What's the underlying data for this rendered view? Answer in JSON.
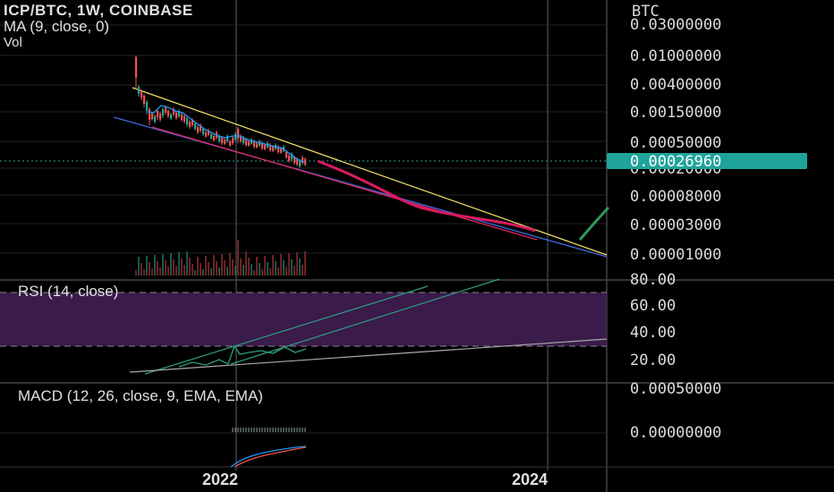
{
  "header": {
    "title": "ICP/BTC, 1W, COINBASE",
    "ma_label": "MA (9, close, 0)",
    "vol_label": "Vol"
  },
  "price_axis": {
    "currency": "BTC",
    "ticks": [
      "0.03000000",
      "0.01000000",
      "0.00400000",
      "0.00150000",
      "0.00050000",
      "0.00020000",
      "0.00008000",
      "0.00003000",
      "0.00001000"
    ],
    "current_price": "0.00026960"
  },
  "rsi_pane": {
    "label": "RSI (14, close)",
    "ticks": [
      "80.00",
      "60.00",
      "40.00",
      "20.00"
    ]
  },
  "macd_pane": {
    "label": "MACD (12, 26, close, 9, EMA, EMA)",
    "ticks": [
      "0.00050000",
      "0.00000000"
    ]
  },
  "x_axis": {
    "ticks": [
      "2022",
      "2024"
    ]
  },
  "colors": {
    "background": "#000000",
    "up_candle": "#26a69a",
    "down_candle": "#ef5350",
    "ma": "#2196f3",
    "upper_trendline": "#f5e36b",
    "lower_trendline": "#3f6be0",
    "channel_line": "#e0245e",
    "projection": "#d81b60",
    "green_projection": "#2e9b57",
    "rsi_lines": "#2e9d7f",
    "rsi_band": "#3a1b4a",
    "price_tag": "#20a39a"
  },
  "chart_data": {
    "type": "candlestick",
    "symbol": "ICP/BTC",
    "interval": "1W",
    "exchange": "COINBASE",
    "scale": "log",
    "series": [
      {
        "name": "MA (9, close, 0)",
        "type": "line"
      },
      {
        "name": "Vol",
        "type": "bar"
      }
    ],
    "current_price": 0.0002696,
    "y_ticks": [
      0.03,
      0.01,
      0.004,
      0.0015,
      0.0005,
      0.0002,
      8e-05,
      3e-05,
      1e-05
    ],
    "rsi_ticks": [
      80,
      60,
      40,
      20
    ],
    "macd_ticks": [
      0.0005,
      0.0
    ],
    "x_ticks": [
      "2022",
      "2024"
    ]
  }
}
